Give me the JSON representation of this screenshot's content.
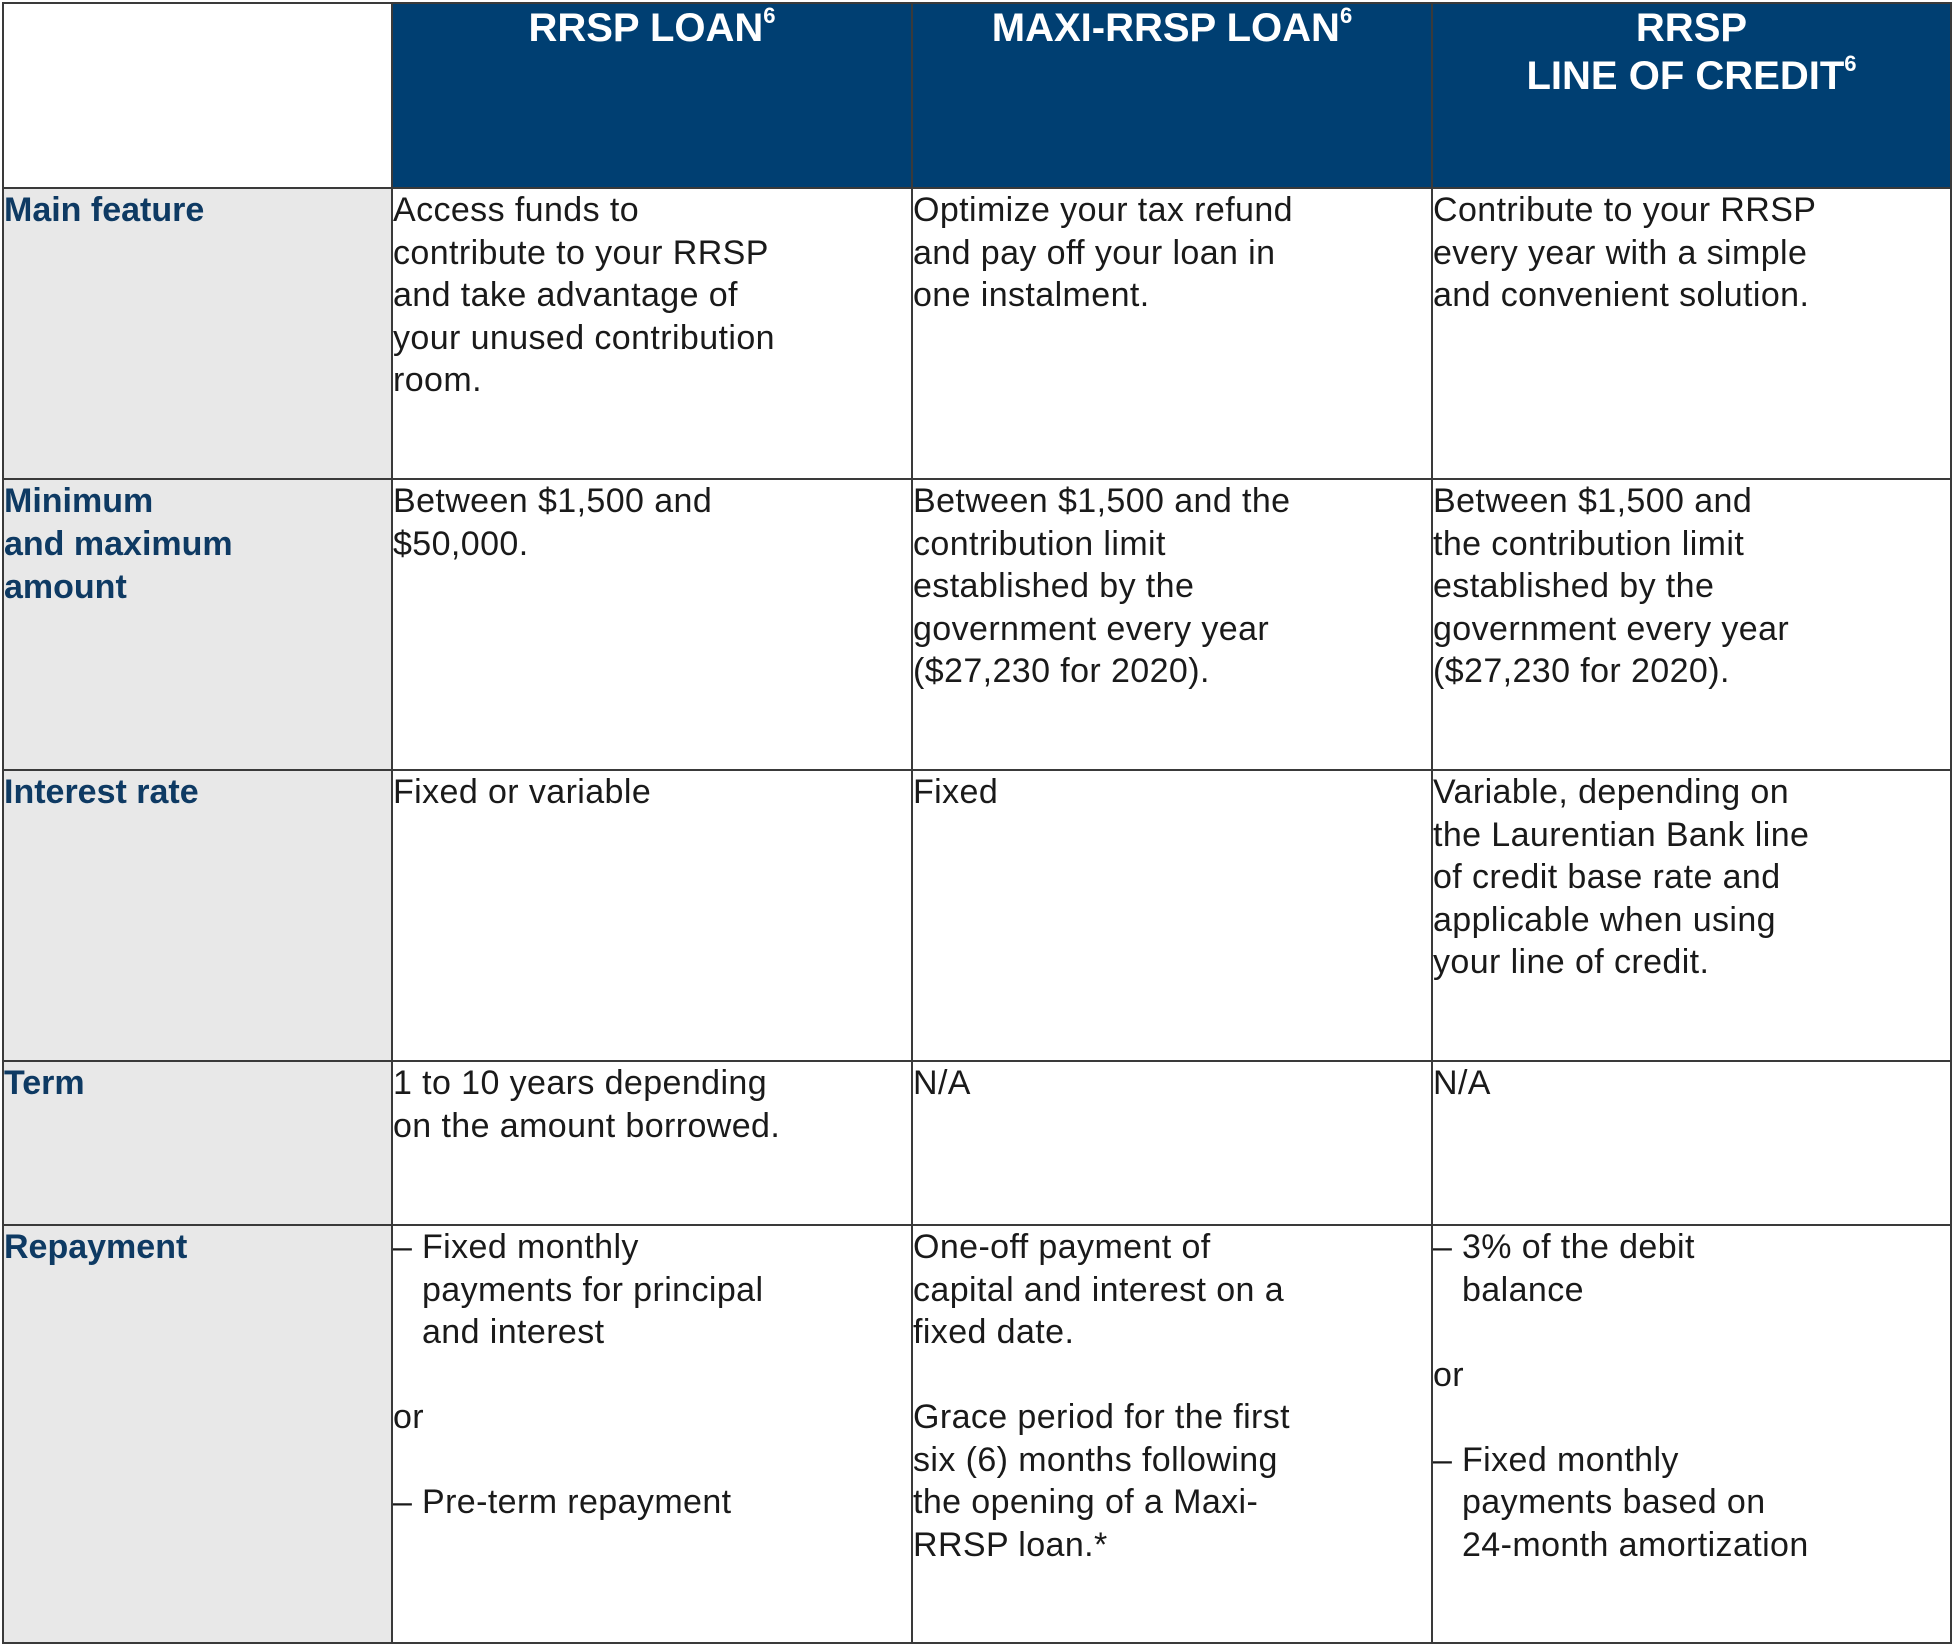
{
  "headers": {
    "col1": {
      "text": "RRSP LOAN",
      "sup": "6"
    },
    "col2": {
      "text": "MAXI-RRSP LOAN",
      "sup": "6"
    },
    "col3": {
      "line1": "RRSP",
      "line2": "LINE OF CREDIT",
      "sup": "6"
    }
  },
  "rows": {
    "main_feature": {
      "label": "Main feature",
      "col1": "Access funds to\ncontribute to your RRSP\nand take advantage of\nyour unused contribution\nroom.",
      "col2": "Optimize your tax refund\nand pay off your loan in\none instalment.",
      "col3": "Contribute to your RRSP\nevery year with a simple\nand convenient solution."
    },
    "amount": {
      "label": "Minimum\nand maximum\namount",
      "col1": "Between $1,500 and\n$50,000.",
      "col2": "Between $1,500 and the\ncontribution limit\nestablished by the\ngovernment every year\n($27,230 for 2020).",
      "col3": "Between $1,500 and\nthe contribution limit\nestablished by the\ngovernment every year\n($27,230 for 2020)."
    },
    "interest_rate": {
      "label": "Interest rate",
      "col1": "Fixed or variable",
      "col2": "Fixed",
      "col3": "Variable, depending on\nthe Laurentian Bank line\nof credit base rate and\napplicable when using\nyour line of credit."
    },
    "term": {
      "label": "Term",
      "col1": "1 to 10 years depending\non the amount borrowed.",
      "col2": "N/A",
      "col3": "N/A"
    },
    "repayment": {
      "label": "Repayment",
      "col1": {
        "item1": "Fixed monthly\npayments for principal\nand interest",
        "or": "or",
        "item2": "Pre-term repayment"
      },
      "col2": {
        "para1": "One-off payment of\ncapital and interest on a\nfixed date.",
        "para2": "Grace period for the first\nsix (6) months following\nthe opening of a Maxi-\nRRSP loan.*"
      },
      "col3": {
        "item1": "3% of the debit\nbalance",
        "or": "or",
        "item2": "Fixed monthly\npayments based on\n24-month amortization"
      }
    }
  },
  "dash_symbol": "–",
  "colors": {
    "header_bg": "#003f72",
    "label_bg": "#e8e8e8",
    "label_text": "#0e3a63",
    "border": "#3a3a3a"
  }
}
